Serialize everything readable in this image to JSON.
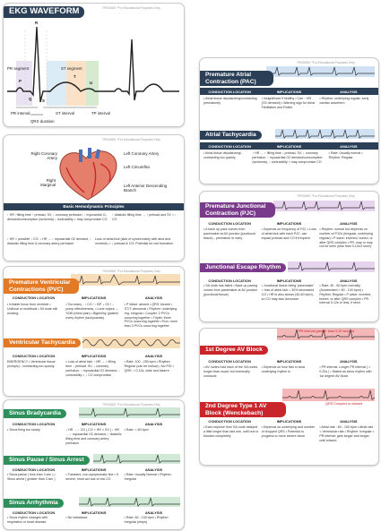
{
  "brand": "TRIOMDE   *For Educational Purposes Only",
  "colors": {
    "navy": "#2b3f57",
    "purple": "#7a3a8c",
    "orange": "#e27a25",
    "red": "#c8262b",
    "green": "#2f8f5b",
    "grid_red": "#f4b8b8",
    "grid_orange": "#f7ddb8",
    "grid_green": "#cfe9d6",
    "grid_purple": "#e6d3ee",
    "grid_blue": "#cfe1f2"
  },
  "ekg": {
    "title": "EKG WAVEFORM",
    "labels": {
      "r": "R",
      "p": "P",
      "t": "T",
      "q": "Q",
      "s": "S",
      "u": "U",
      "pr_segment": "PR segment",
      "st_segment": "ST segment",
      "pr_interval": "PR interval",
      "st_interval": "ST interval",
      "tp_interval": "TP interval",
      "qrs": "QRS duration"
    }
  },
  "heart": {
    "labels": {
      "rca": "Right Coronary Artery",
      "lca": "Left Coronary Artery",
      "marginal": "Right Marginal",
      "circumflex": "Left Circumflex",
      "lad": "Left Anterior Descending Branch"
    },
    "principles_title": "Basic Hemodynamic Principles",
    "p1": "↑ HR ↑filling time ↑ preload, SV, ↓ coronary perfusion, ↑ myocardial O₂ demand/consumption (ischemia) ↓ contractility = may compromise CO",
    "p2": "↑ diastolic filling time → ↑ preload and SV = ↑ CO",
    "p3": "↓ HR = possible ↓ CO; ↓ HR → ↓ myocardial O2 demand, ↑ diastolic filling time & coronary artery perfusion",
    "p4": "Loss of atrial kick (lack of synchronicity with atria and ventricle) = ↓ preload & CO; Potential for clot formation"
  },
  "pvc": {
    "title": "Premature Ventricular Contractions (PVC)",
    "headers": [
      "CONDUCTION LOCATION",
      "IMPLICATIONS",
      "ANALYSIS"
    ],
    "c1": "• Irritable focus from ventricle • Unifocal or multifocal • Sit node still working",
    "c2": "• Too many - ↓ CO / ↓ BP, ↓ O2 / ↓ pump effectiveness, • Lone output, ↓ SOB (chest pain) • Bigeminy (pattern every rhythm (tachycardia)",
    "c3": "• P Wave: absent • QRS: bizarre • ST/T: abnormal • Rhythm: underlying reg. irregular • Couplet: 2 PVCs occurring together • Triplet: three PVCs occurring together • Run: more than 3 PVCs occurring together"
  },
  "vtach": {
    "title": "Ventricular Tachycardia",
    "headers": [
      "CONDUCTION LOCATION",
      "IMPLICATIONS",
      "ANALYSIS"
    ],
    "c1": "EMERGENCY • Ventricular tissue (ectopic) - contracting too quickly",
    "c2": "• Loss of atrial kick ↑ HR → ↑ filling time ↓ preload, SV, ↓ coronary perfusion, ↑ myocardial O2 demand, ↓ contractility = ↓ CO compromise",
    "c3": "• Rate: 100 - 250 bpm • Rhythm: Regular (can be hollow) • No P/D • QRS: > 0.12s, wide and bizarre"
  },
  "brady": {
    "title": "Sinus Bradycardia",
    "headers": [
      "CONDUCTION LOCATION",
      "IMPLICATIONS",
      "ANALYSIS"
    ],
    "c1": "• Sinus firing too slowly",
    "c2": "↓ HR → ↓ CO ( CO = HR × SV ) ↓ HR → ↓ myocardial O2 demand, ↑ diastolic filling time and coronary artery perfusion",
    "c3": "• Rate: < 60 bpm"
  },
  "pause": {
    "title": "Sinus Pause / Sinus Arrest",
    "headers": [
      "CONDUCTION LOCATION",
      "IMPLICATIONS",
      "ANALYSIS"
    ],
    "c1": "• Sinus pause ( less than 3 sec ) • Sinus arrest ( greater than 3 sec )",
    "c2": "• Transient, non-symptomatic fine • If severe, must act due to low CO",
    "c3": "• Rate: Usually Normal • Rhythm: Irregular"
  },
  "arrhythmia": {
    "title": "Sinus Arrhythmia",
    "headers": [
      "CONDUCTION LOCATION",
      "IMPLICATIONS",
      "ANALYSIS"
    ],
    "c1": "• Sinus rhythm changes with respiration or heart disease",
    "c2": "• No imbalance",
    "c3": "• Rate: 60 - 100 bpm • Rhythm: Irregular (resps)"
  },
  "pac": {
    "title": "Premature Atrial Contraction (PAC)",
    "headers": [
      "CONDUCTION LOCATION",
      "IMPLICATIONS",
      "ANALYSIS"
    ],
    "c1": "• Atrial tissue depolarizing/contracting prematurely",
    "c2": "• Insignificant if healthy • Can ↑ HR (O2 demand) • Warning sign for Atrial Fibrillation and Flutter",
    "c3": "• Rhythm: underlying regular, early cardiac waveform"
  },
  "atach": {
    "title": "Atrial Tachycardia",
    "headers": [
      "CONDUCTION LOCATION",
      "IMPLICATIONS",
      "ANALYSIS"
    ],
    "c1": "• Atrial tissue depolarizing/ contracting too quickly",
    "c2": "↑ HR → ↑ filling time ↓ preload, SV, ↓ coronary perfusion, ↑ myocardial O2 demand/consumption (ischemia), ↓ contractility = may compromise CO",
    "c3": "• Rate: Usually normal • Rhythm: Regular"
  },
  "pjc": {
    "title": "Premature Junctional Contraction (PJC)",
    "headers": [
      "CONDUCTION LOCATION",
      "IMPLICATIONS",
      "ANALYSIS"
    ],
    "c1": "• A back up pace comes from pacemaker at AV junction (junctional tissue) - premature or early",
    "c2": "• Depends on frequency of PJC • Loss of atrial kick with each PJC, can impact preload and CO if frequent",
    "c3": "• Rhythm: normal but depends on number of PJCs (irregular, underlying regular) • P wave: inverted, buried, or after QRS complex • PR: may or may not be seen (less than 0.12s if seen)"
  },
  "escape": {
    "title": "Junctional Escape Rhythm",
    "headers": [
      "CONDUCTION LOCATION",
      "IMPLICATIONS",
      "ANALYSIS"
    ],
    "c1": "• SA node has failed • Back up pacing comes from pacemaker at AV junction (junctional tissue)",
    "c2": "• Junctional tissue being 'pacemaker' = loss of atrial kick = 30% decreased CO • HR is also slower (40-60 bpm), so CO may also decrease",
    "c3": "• Rate: 40 - 60 bpm normally (Accelerated = 60 - 100 bpm) • Rhythm: Regular • P wave: inverted, buried, or after QRS complex • PR interval 0.12s or less, if seen"
  },
  "firstdeg": {
    "title": "1st Degree AV Block",
    "strip_note": "PR interval greater than 0.20 second",
    "headers": [
      "CONDUCTION LOCATION",
      "IMPLICATIONS",
      "ANALYSIS"
    ],
    "c1": "• AV nodes hold each of the SA nodes longer than usual, but eventually conducts",
    "c2": "• Depends on how fast or slow underlying rhythm is",
    "c3": "• PR interval: Longer PR interval ( > 0.20s ) • Stated as sinus rhythm with 1st degree AV block"
  },
  "wenck": {
    "title": "2nd Degree Type 1 AV Block (Wenckebach)",
    "strip_note": "QRS Complex is missed",
    "headers": [
      "CONDUCTION LOCATION",
      "IMPLICATIONS",
      "ANALYSIS"
    ],
    "c1": "• Each impulse from SA node delayed a little longer than last one, until one is blocked completely",
    "c2": "• Depends on underlying and number of dropped QRS • Potential to progress to more severe block",
    "c3": "• Atrial rate : 60 - 100 bpm • Atrial rate > Ventricular rate • Rhythm: Irregular • PR interval: gets longer and longer, until missed"
  }
}
